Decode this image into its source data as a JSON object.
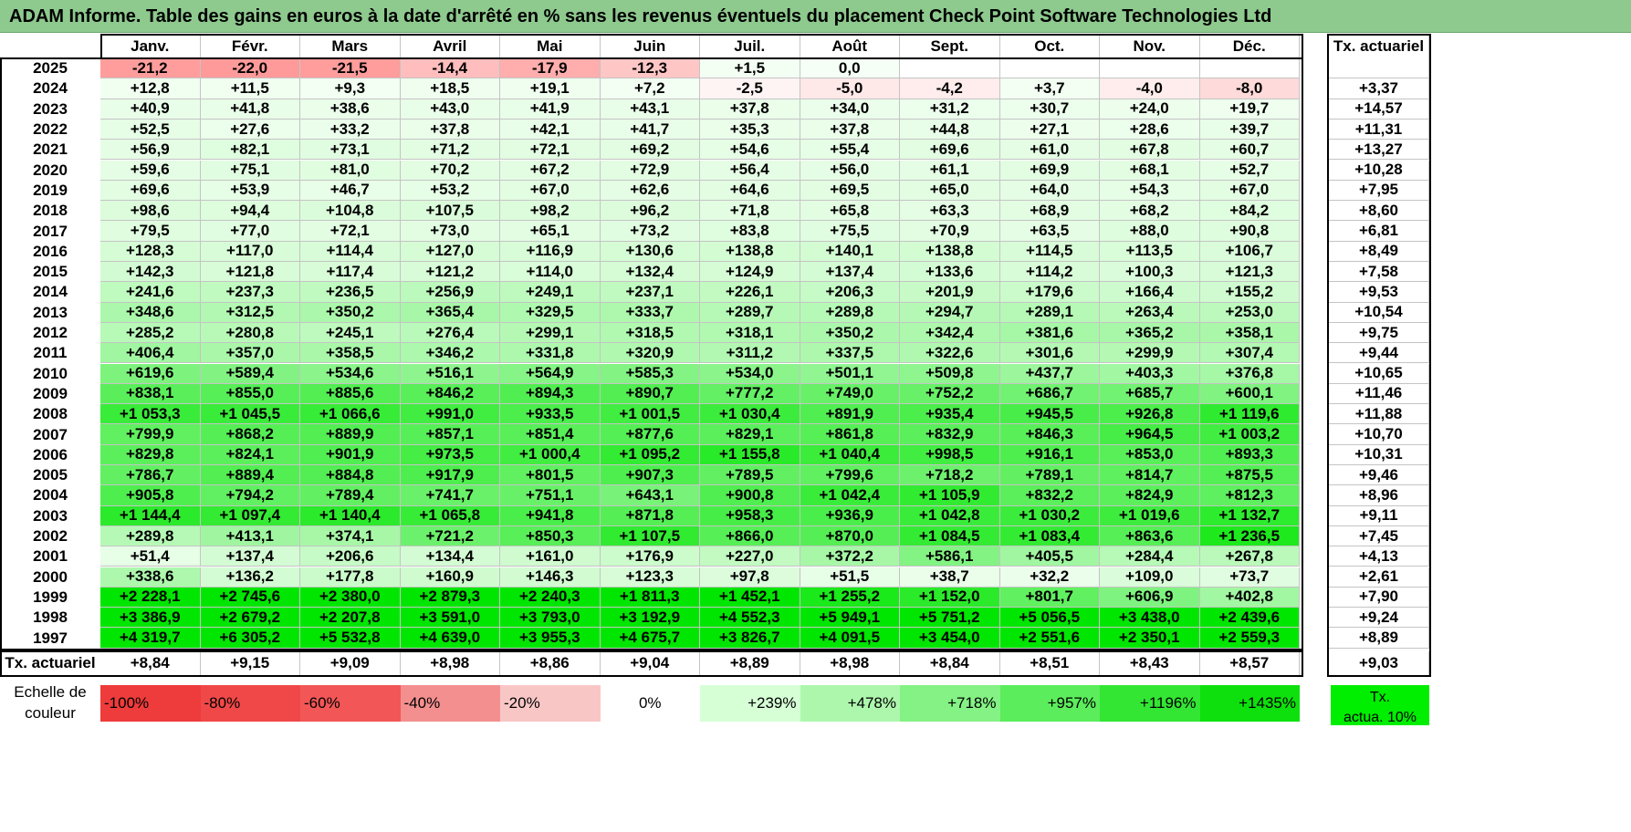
{
  "title": "ADAM Informe. Table des gains en euros à la date d'arrêté en % sans les revenus éventuels du placement Check Point Software Technologies Ltd",
  "months": [
    "Janv.",
    "Févr.",
    "Mars",
    "Avril",
    "Mai",
    "Juin",
    "Juil.",
    "Août",
    "Sept.",
    "Oct.",
    "Nov.",
    "Déc."
  ],
  "tx_header": "Tx. actuariel",
  "rows": [
    {
      "year": "2025",
      "values": [
        "-21,2",
        "-22,0",
        "-21,5",
        "-14,4",
        "-17,9",
        "-12,3",
        "+1,5",
        "0,0",
        "",
        "",
        "",
        ""
      ],
      "tx": ""
    },
    {
      "year": "2024",
      "values": [
        "+12,8",
        "+11,5",
        "+9,3",
        "+18,5",
        "+19,1",
        "+7,2",
        "-2,5",
        "-5,0",
        "-4,2",
        "+3,7",
        "-4,0",
        "-8,0"
      ],
      "tx": "+3,37"
    },
    {
      "year": "2023",
      "values": [
        "+40,9",
        "+41,8",
        "+38,6",
        "+43,0",
        "+41,9",
        "+43,1",
        "+37,8",
        "+34,0",
        "+31,2",
        "+30,7",
        "+24,0",
        "+19,7"
      ],
      "tx": "+14,57"
    },
    {
      "year": "2022",
      "values": [
        "+52,5",
        "+27,6",
        "+33,2",
        "+37,8",
        "+42,1",
        "+41,7",
        "+35,3",
        "+37,8",
        "+44,8",
        "+27,1",
        "+28,6",
        "+39,7"
      ],
      "tx": "+11,31"
    },
    {
      "year": "2021",
      "values": [
        "+56,9",
        "+82,1",
        "+73,1",
        "+71,2",
        "+72,1",
        "+69,2",
        "+54,6",
        "+55,4",
        "+69,6",
        "+61,0",
        "+67,8",
        "+60,7"
      ],
      "tx": "+13,27"
    },
    {
      "year": "2020",
      "values": [
        "+59,6",
        "+75,1",
        "+81,0",
        "+70,2",
        "+67,2",
        "+72,9",
        "+56,4",
        "+56,0",
        "+61,1",
        "+69,9",
        "+68,1",
        "+52,7"
      ],
      "tx": "+10,28"
    },
    {
      "year": "2019",
      "values": [
        "+69,6",
        "+53,9",
        "+46,7",
        "+53,2",
        "+67,0",
        "+62,6",
        "+64,6",
        "+69,5",
        "+65,0",
        "+64,0",
        "+54,3",
        "+67,0"
      ],
      "tx": "+7,95"
    },
    {
      "year": "2018",
      "values": [
        "+98,6",
        "+94,4",
        "+104,8",
        "+107,5",
        "+98,2",
        "+96,2",
        "+71,8",
        "+65,8",
        "+63,3",
        "+68,9",
        "+68,2",
        "+84,2"
      ],
      "tx": "+8,60"
    },
    {
      "year": "2017",
      "values": [
        "+79,5",
        "+77,0",
        "+72,1",
        "+73,0",
        "+65,1",
        "+73,2",
        "+83,8",
        "+75,5",
        "+70,9",
        "+63,5",
        "+88,0",
        "+90,8"
      ],
      "tx": "+6,81"
    },
    {
      "year": "2016",
      "values": [
        "+128,3",
        "+117,0",
        "+114,4",
        "+127,0",
        "+116,9",
        "+130,6",
        "+138,8",
        "+140,1",
        "+138,8",
        "+114,5",
        "+113,5",
        "+106,7"
      ],
      "tx": "+8,49"
    },
    {
      "year": "2015",
      "values": [
        "+142,3",
        "+121,8",
        "+117,4",
        "+121,2",
        "+114,0",
        "+132,4",
        "+124,9",
        "+137,4",
        "+133,6",
        "+114,2",
        "+100,3",
        "+121,3"
      ],
      "tx": "+7,58"
    },
    {
      "year": "2014",
      "values": [
        "+241,6",
        "+237,3",
        "+236,5",
        "+256,9",
        "+249,1",
        "+237,1",
        "+226,1",
        "+206,3",
        "+201,9",
        "+179,6",
        "+166,4",
        "+155,2"
      ],
      "tx": "+9,53"
    },
    {
      "year": "2013",
      "values": [
        "+348,6",
        "+312,5",
        "+350,2",
        "+365,4",
        "+329,5",
        "+333,7",
        "+289,7",
        "+289,8",
        "+294,7",
        "+289,1",
        "+263,4",
        "+253,0"
      ],
      "tx": "+10,54"
    },
    {
      "year": "2012",
      "values": [
        "+285,2",
        "+280,8",
        "+245,1",
        "+276,4",
        "+299,1",
        "+318,5",
        "+318,1",
        "+350,2",
        "+342,4",
        "+381,6",
        "+365,2",
        "+358,1"
      ],
      "tx": "+9,75"
    },
    {
      "year": "2011",
      "values": [
        "+406,4",
        "+357,0",
        "+358,5",
        "+346,2",
        "+331,8",
        "+320,9",
        "+311,2",
        "+337,5",
        "+322,6",
        "+301,6",
        "+299,9",
        "+307,4"
      ],
      "tx": "+9,44"
    },
    {
      "year": "2010",
      "values": [
        "+619,6",
        "+589,4",
        "+534,6",
        "+516,1",
        "+564,9",
        "+585,3",
        "+534,0",
        "+501,1",
        "+509,8",
        "+437,7",
        "+403,3",
        "+376,8"
      ],
      "tx": "+10,65"
    },
    {
      "year": "2009",
      "values": [
        "+838,1",
        "+855,0",
        "+885,6",
        "+846,2",
        "+894,3",
        "+890,7",
        "+777,2",
        "+749,0",
        "+752,2",
        "+686,7",
        "+685,7",
        "+600,1"
      ],
      "tx": "+11,46"
    },
    {
      "year": "2008",
      "values": [
        "+1 053,3",
        "+1 045,5",
        "+1 066,6",
        "+991,0",
        "+933,5",
        "+1 001,5",
        "+1 030,4",
        "+891,9",
        "+935,4",
        "+945,5",
        "+926,8",
        "+1 119,6"
      ],
      "tx": "+11,88"
    },
    {
      "year": "2007",
      "values": [
        "+799,9",
        "+868,2",
        "+889,9",
        "+857,1",
        "+851,4",
        "+877,6",
        "+829,1",
        "+861,8",
        "+832,9",
        "+846,3",
        "+964,5",
        "+1 003,2"
      ],
      "tx": "+10,70"
    },
    {
      "year": "2006",
      "values": [
        "+829,8",
        "+824,1",
        "+901,9",
        "+973,5",
        "+1 000,4",
        "+1 095,2",
        "+1 155,8",
        "+1 040,4",
        "+998,5",
        "+916,1",
        "+853,0",
        "+893,3"
      ],
      "tx": "+10,31"
    },
    {
      "year": "2005",
      "values": [
        "+786,7",
        "+889,4",
        "+884,8",
        "+917,9",
        "+801,5",
        "+907,3",
        "+789,5",
        "+799,6",
        "+718,2",
        "+789,1",
        "+814,7",
        "+875,5"
      ],
      "tx": "+9,46"
    },
    {
      "year": "2004",
      "values": [
        "+905,8",
        "+794,2",
        "+789,4",
        "+741,7",
        "+751,1",
        "+643,1",
        "+900,8",
        "+1 042,4",
        "+1 105,9",
        "+832,2",
        "+824,9",
        "+812,3"
      ],
      "tx": "+8,96"
    },
    {
      "year": "2003",
      "values": [
        "+1 144,4",
        "+1 097,4",
        "+1 140,4",
        "+1 065,8",
        "+941,8",
        "+871,8",
        "+958,3",
        "+936,9",
        "+1 042,8",
        "+1 030,2",
        "+1 019,6",
        "+1 132,7"
      ],
      "tx": "+9,11"
    },
    {
      "year": "2002",
      "values": [
        "+289,8",
        "+413,1",
        "+374,1",
        "+721,2",
        "+850,3",
        "+1 107,5",
        "+866,0",
        "+870,0",
        "+1 084,5",
        "+1 083,4",
        "+863,6",
        "+1 236,5"
      ],
      "tx": "+7,45"
    },
    {
      "year": "2001",
      "values": [
        "+51,4",
        "+137,4",
        "+206,6",
        "+134,4",
        "+161,0",
        "+176,9",
        "+227,0",
        "+372,2",
        "+586,1",
        "+405,5",
        "+284,4",
        "+267,8"
      ],
      "tx": "+4,13"
    },
    {
      "year": "2000",
      "values": [
        "+338,6",
        "+136,2",
        "+177,8",
        "+160,9",
        "+146,3",
        "+123,3",
        "+97,8",
        "+51,5",
        "+38,7",
        "+32,2",
        "+109,0",
        "+73,7"
      ],
      "tx": "+2,61"
    },
    {
      "year": "1999",
      "values": [
        "+2 228,1",
        "+2 745,6",
        "+2 380,0",
        "+2 879,3",
        "+2 240,3",
        "+1 811,3",
        "+1 452,1",
        "+1 255,2",
        "+1 152,0",
        "+801,7",
        "+606,9",
        "+402,8"
      ],
      "tx": "+7,90"
    },
    {
      "year": "1998",
      "values": [
        "+3 386,9",
        "+2 679,2",
        "+2 207,8",
        "+3 591,0",
        "+3 793,0",
        "+3 192,9",
        "+4 552,3",
        "+5 949,1",
        "+5 751,2",
        "+5 056,5",
        "+3 438,0",
        "+2 439,6"
      ],
      "tx": "+9,24"
    },
    {
      "year": "1997",
      "values": [
        "+4 319,7",
        "+6 305,2",
        "+5 532,8",
        "+4 639,0",
        "+3 955,3",
        "+4 675,7",
        "+3 826,7",
        "+4 091,5",
        "+3 454,0",
        "+2 551,6",
        "+2 350,1",
        "+2 559,3"
      ],
      "tx": "+8,89"
    }
  ],
  "footer": {
    "label": "Tx. actuariel",
    "values": [
      "+8,84",
      "+9,15",
      "+9,09",
      "+8,98",
      "+8,86",
      "+9,04",
      "+8,89",
      "+8,98",
      "+8,84",
      "+8,51",
      "+8,43",
      "+8,57"
    ],
    "total": "+9,03"
  },
  "scale": {
    "label_line1": "Echelle de",
    "label_line2": "couleur",
    "items": [
      {
        "label": "-100%",
        "color": "#ee3b3b"
      },
      {
        "label": "-80%",
        "color": "#f04848"
      },
      {
        "label": "-60%",
        "color": "#f25656"
      },
      {
        "label": "-40%",
        "color": "#f48f8f"
      },
      {
        "label": "-20%",
        "color": "#f9c6c6"
      },
      {
        "label": "0%",
        "color": "#ffffff"
      },
      {
        "label": "+239%",
        "color": "#d6ffd6"
      },
      {
        "label": "+478%",
        "color": "#adf7ad"
      },
      {
        "label": "+718%",
        "color": "#84f284"
      },
      {
        "label": "+957%",
        "color": "#5ced5c"
      },
      {
        "label": "+1196%",
        "color": "#33e633"
      },
      {
        "label": "+1435%",
        "color": "#0ee00e"
      }
    ],
    "tx_line1": "Tx.",
    "tx_line2": "actua. 10%",
    "tx_color": "#00ee00"
  },
  "colors": {
    "title_bg": "#8ec98e",
    "negative_strong": "#f4a0a0",
    "positive_max": "#00e600"
  }
}
